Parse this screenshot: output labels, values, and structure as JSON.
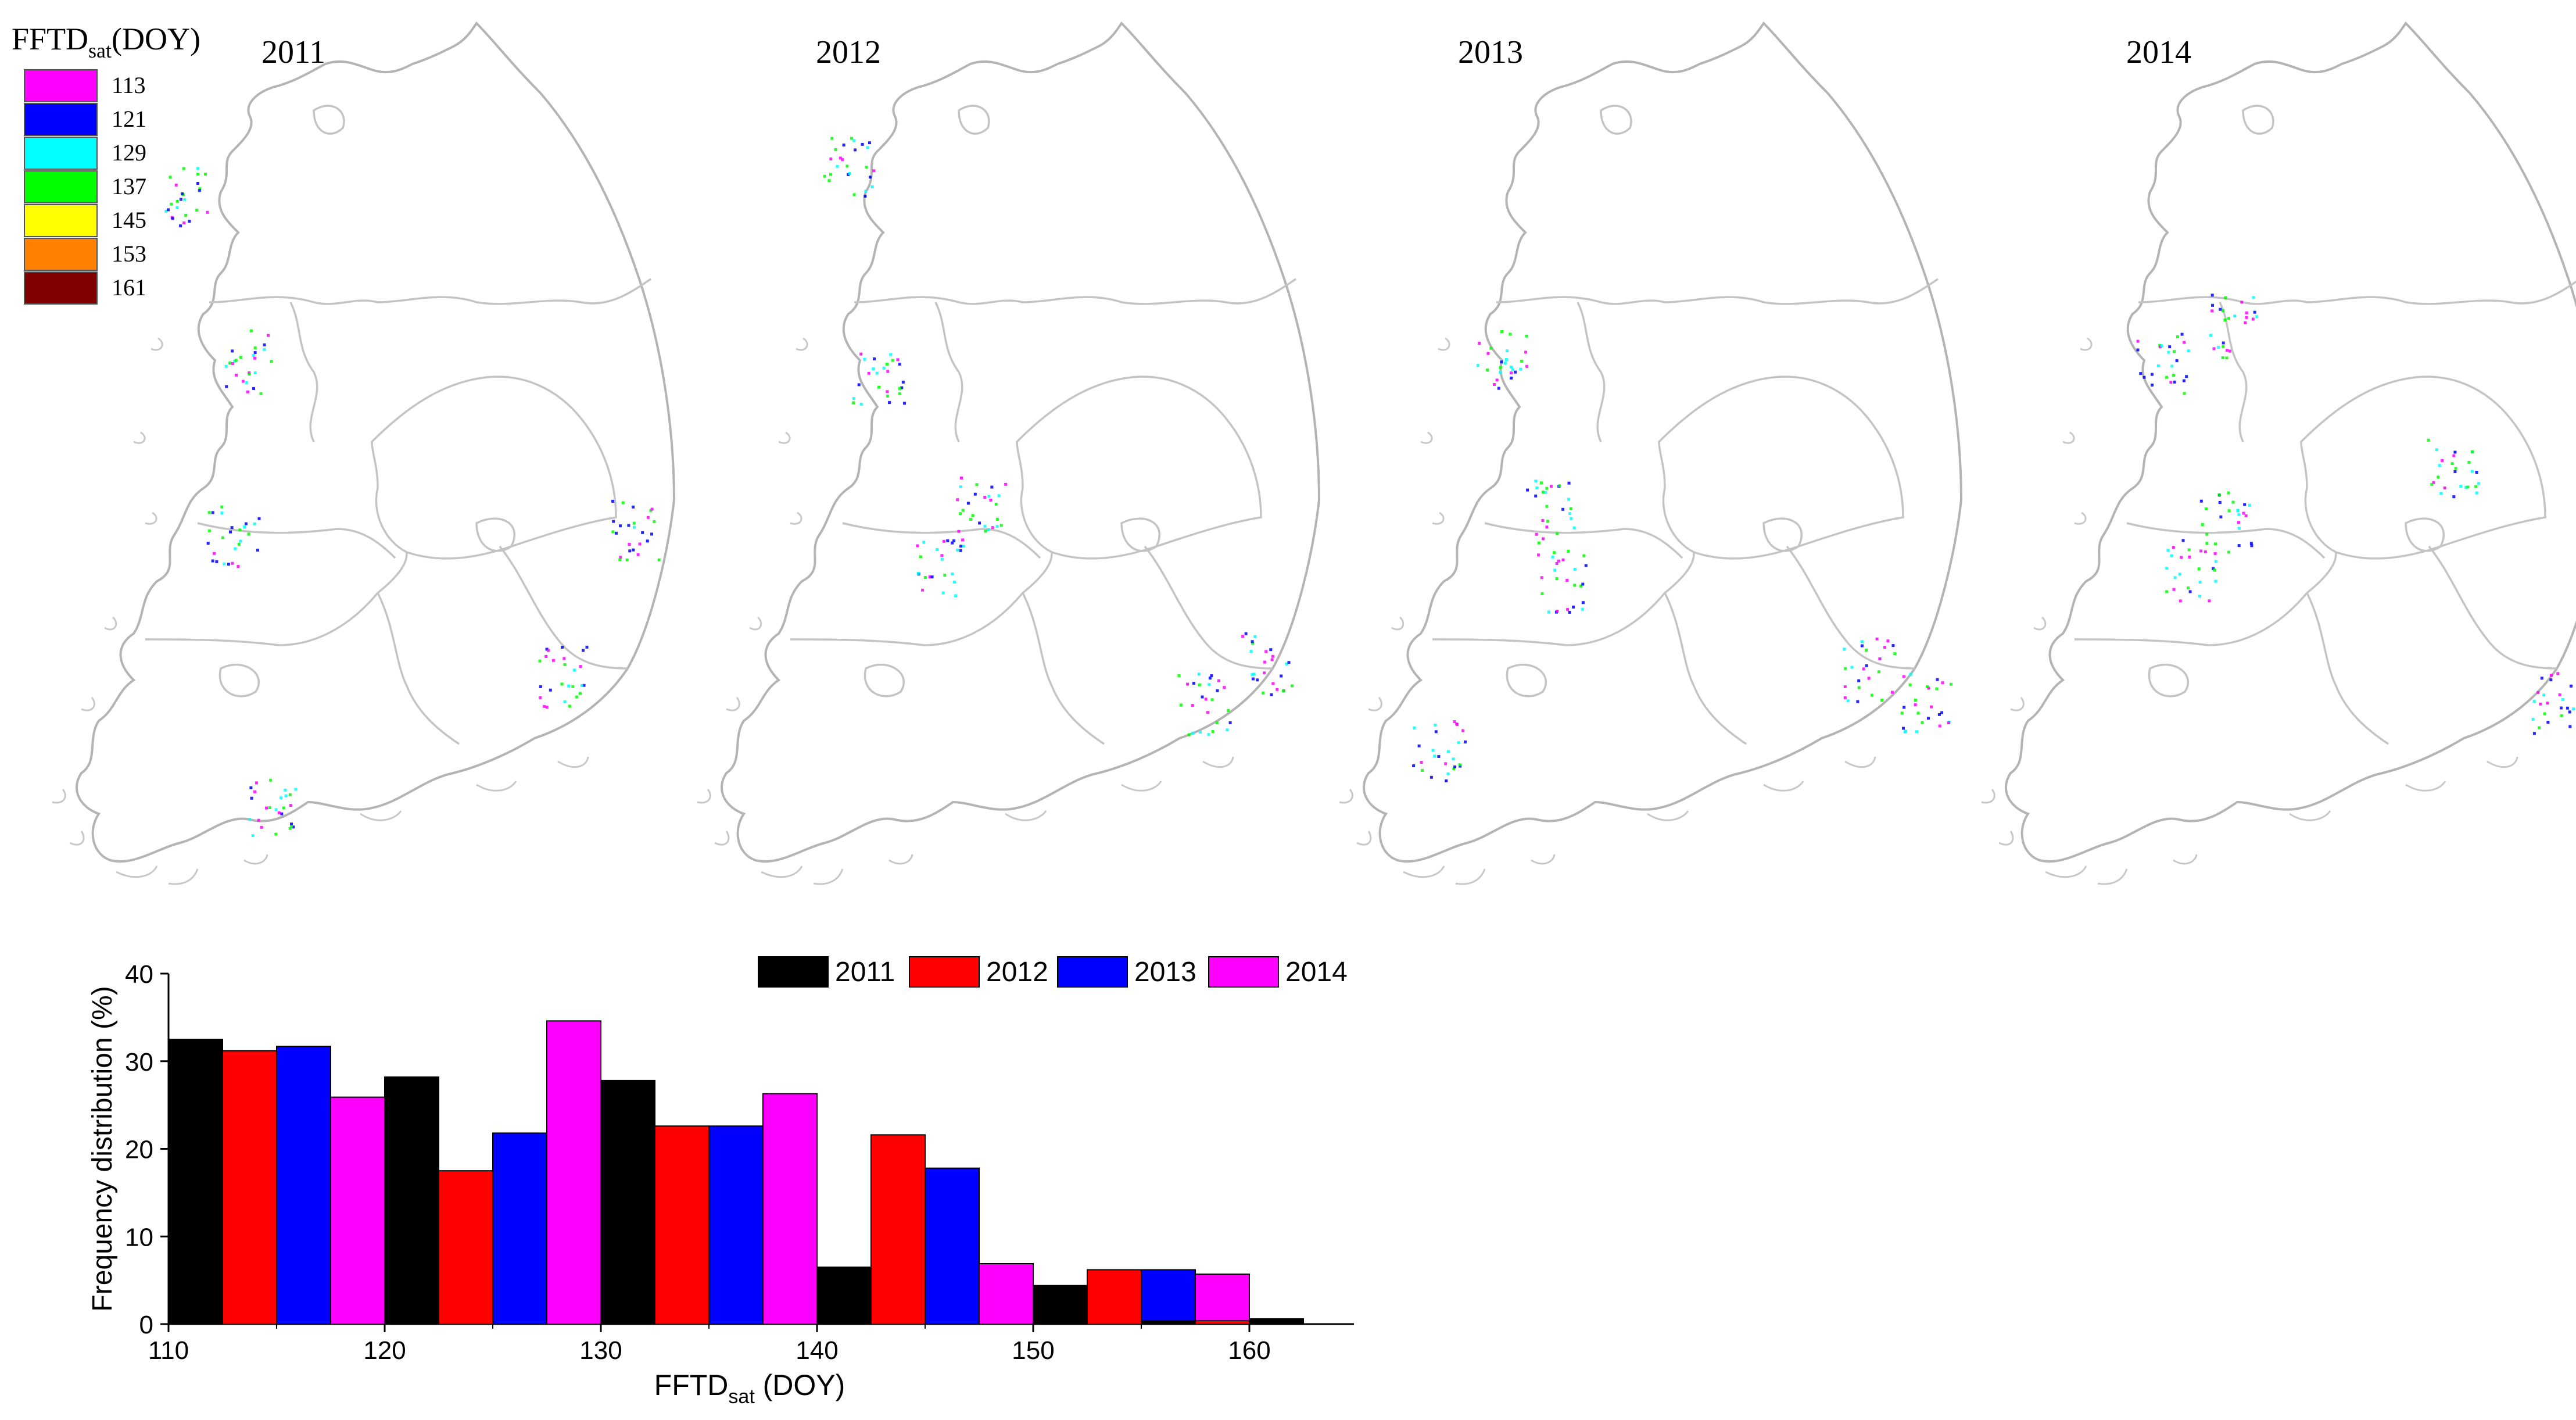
{
  "legend_scale": {
    "title": "FFTD",
    "title_sub": "sat",
    "title_suffix": "(DOY)",
    "entries": [
      {
        "label": "113",
        "color": "#ff00ff"
      },
      {
        "label": "121",
        "color": "#0000ff"
      },
      {
        "label": "129",
        "color": "#00ffff"
      },
      {
        "label": "137",
        "color": "#00ff00"
      },
      {
        "label": "145",
        "color": "#ffff00"
      },
      {
        "label": "153",
        "color": "#ff8000"
      },
      {
        "label": "161",
        "color": "#800000"
      }
    ]
  },
  "maps": [
    {
      "year": "2011"
    },
    {
      "year": "2012"
    },
    {
      "year": "2013"
    },
    {
      "year": "2014"
    }
  ],
  "chart_data": {
    "type": "bar",
    "xlabel": "FFTD",
    "xlabel_sub": "sat",
    "xlabel_suffix": "(DOY)",
    "ylabel": "Frequency distribution (%)",
    "xlim": [
      110,
      160
    ],
    "xticks": [
      110,
      120,
      130,
      140,
      150,
      160
    ],
    "ylim": [
      0,
      40
    ],
    "yticks": [
      0,
      10,
      20,
      30,
      40
    ],
    "legend_position": "top",
    "bin_starts": [
      110,
      120,
      130,
      140,
      150,
      160
    ],
    "series": [
      {
        "name": "2011",
        "color": "#000000",
        "values": [
          32.5,
          28.2,
          27.8,
          6.5,
          4.4,
          0.6
        ]
      },
      {
        "name": "2012",
        "color": "#ff0000",
        "values": [
          31.2,
          17.5,
          22.6,
          21.6,
          6.2,
          0.8
        ]
      },
      {
        "name": "2013",
        "color": "#0000ff",
        "values": [
          31.7,
          21.8,
          22.6,
          17.8,
          6.2,
          0.0
        ]
      },
      {
        "name": "2014",
        "color": "#ff00ff",
        "values": [
          25.9,
          34.6,
          26.3,
          6.9,
          5.7,
          0.8
        ]
      }
    ],
    "extra_bars": [
      {
        "series": "2011",
        "x": 160,
        "value": 0.4
      },
      {
        "series": "2012",
        "x": 160,
        "value": 0.4
      }
    ]
  }
}
